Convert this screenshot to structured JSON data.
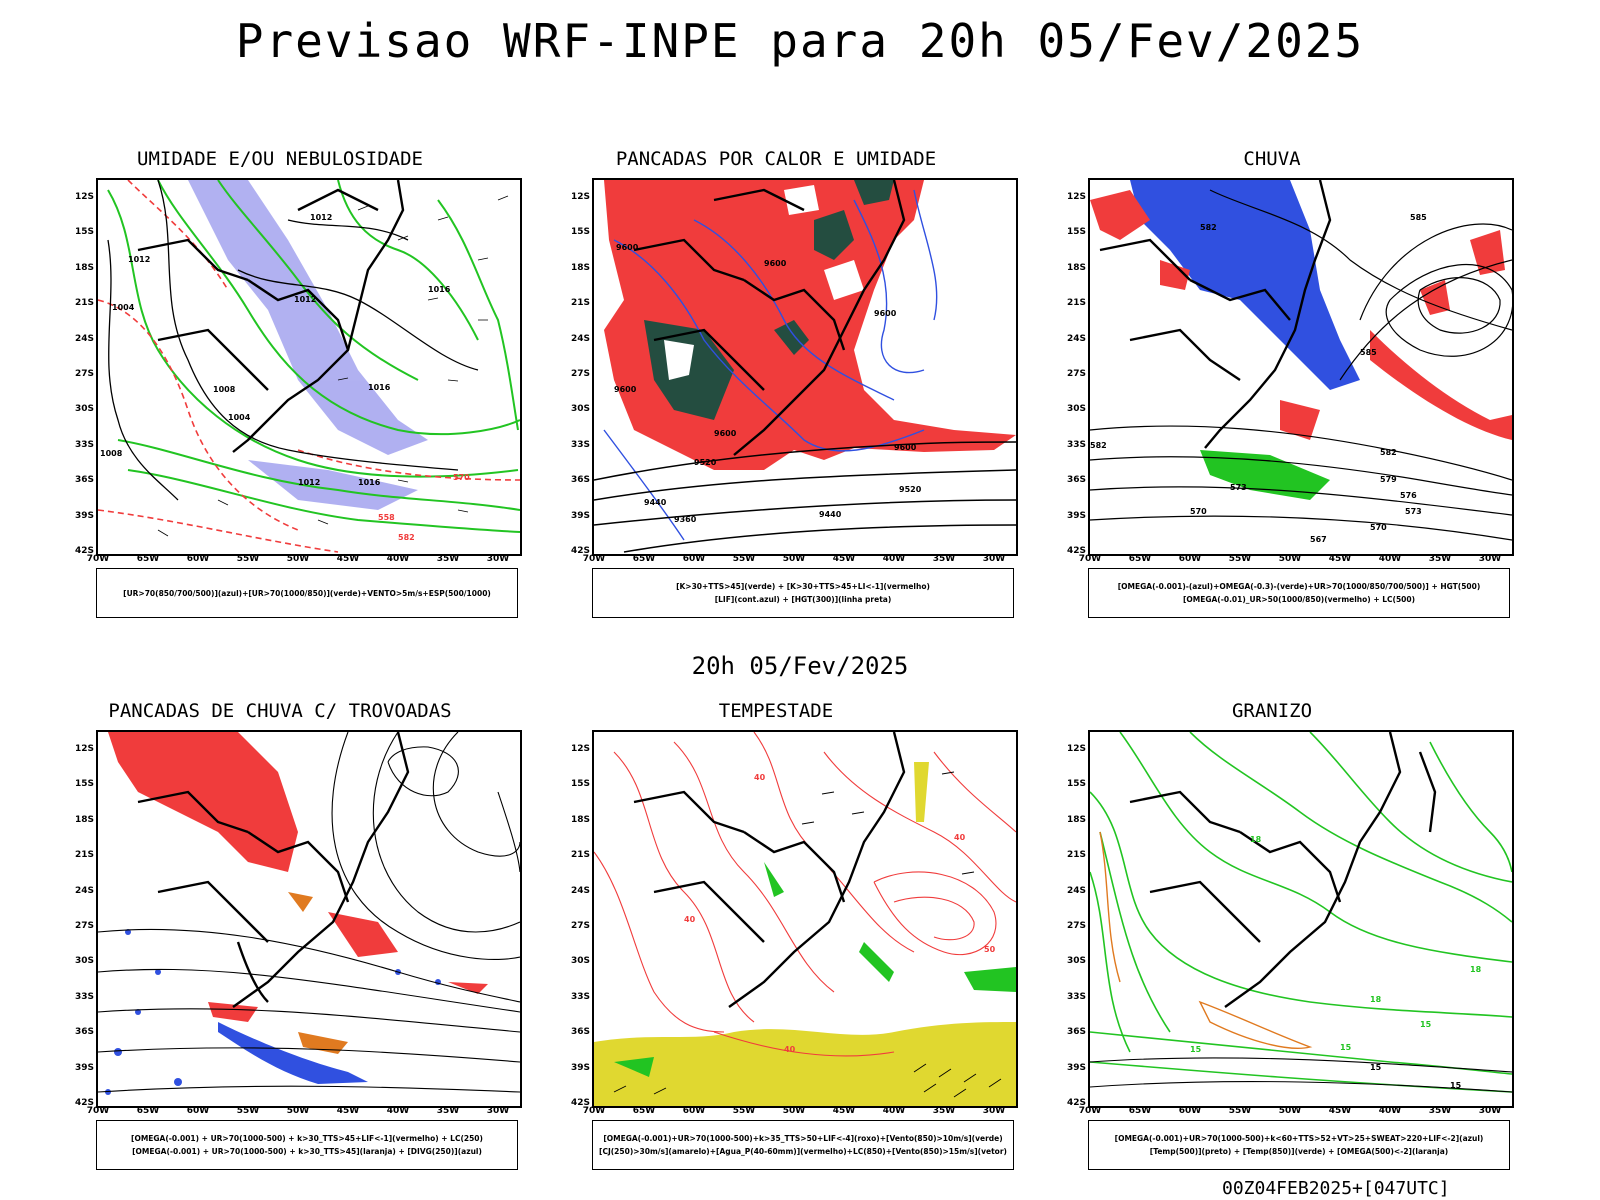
{
  "main_title": "Previsao WRF-INPE  para 20h 05/Fev/2025",
  "mid_title": "20h 05/Fev/2025",
  "footer": "00Z04FEB2025+[047UTC]",
  "lat_labels": [
    "12S",
    "15S",
    "18S",
    "21S",
    "24S",
    "27S",
    "30S",
    "33S",
    "36S",
    "39S",
    "42S"
  ],
  "lon_labels": [
    "70W",
    "65W",
    "60W",
    "55W",
    "50W",
    "45W",
    "40W",
    "35W",
    "30W"
  ],
  "panels": [
    {
      "title": "UMIDADE E/OU NEBULOSIDADE",
      "legend": [
        "[UR>70(850/700/500)](azul)+[UR>70(1000/850)](verde)+VENTO>5m/s+ESP(500/1000)"
      ],
      "contour_labels": [
        "1012",
        "1016",
        "1008",
        "1004",
        "1000",
        "570",
        "558",
        "582"
      ]
    },
    {
      "title": "PANCADAS POR CALOR E UMIDADE",
      "legend": [
        "[K>30+TTS>45](verde) + [K>30+TTS>45+LI<-1](vermelho)",
        "[LIF](cont.azul) + [HGT(300)](linha preta)"
      ],
      "contour_labels": [
        "9600",
        "9520",
        "9440",
        "9360"
      ]
    },
    {
      "title": "CHUVA",
      "legend": [
        "[OMEGA(-0.001)-(azul)+OMEGA(-0.3)-(verde)+UR>70(1000/850/700/500)] + HGT(500)",
        "[OMEGA(-0.01)_UR>50(1000/850)(vermelho) + LC(500)"
      ],
      "contour_labels": [
        "582",
        "585",
        "579",
        "576",
        "573",
        "570",
        "567"
      ]
    },
    {
      "title": "PANCADAS DE CHUVA C/ TROVOADAS",
      "legend": [
        "[OMEGA(-0.001) + UR>70(1000-500) + k>30_TTS>45+LIF<-1](vermelho) + LC(250)",
        "[OMEGA(-0.001) + UR>70(1000-500) + k>30_TTS>45](laranja) + [DIVG(250)](azul)"
      ],
      "contour_labels": []
    },
    {
      "title": "TEMPESTADE",
      "legend": [
        "[OMEGA(-0.001)+UR>70(1000-500)+k>35_TTS>50+LIF<-4](roxo)+[Vento(850)>10m/s](verde)",
        "[CJ(250)>30m/s](amarelo)+[Agua_P(40-60mm)](vermelho)+LC(850)+[Vento(850)>15m/s](vetor)"
      ],
      "contour_labels": [
        "40",
        "50"
      ]
    },
    {
      "title": "GRANIZO",
      "legend": [
        "[OMEGA(-0.001)+UR>70(1000-500)+k<60+TTS>52+VT>25+SWEAT>220+LIF<-2](azul)",
        "[Temp(500)](preto) + [Temp(850)](verde) + [OMEGA(500)<-2](laranja)"
      ],
      "contour_labels": [
        "15",
        "18"
      ]
    }
  ],
  "colors": {
    "red": "#f03c3c",
    "green": "#22c422",
    "blue": "#3050e0",
    "lavender": "#a8a8f0",
    "darkgreen": "#244d40",
    "yellow": "#e0d830",
    "orange": "#e07a20",
    "black": "#000000"
  }
}
